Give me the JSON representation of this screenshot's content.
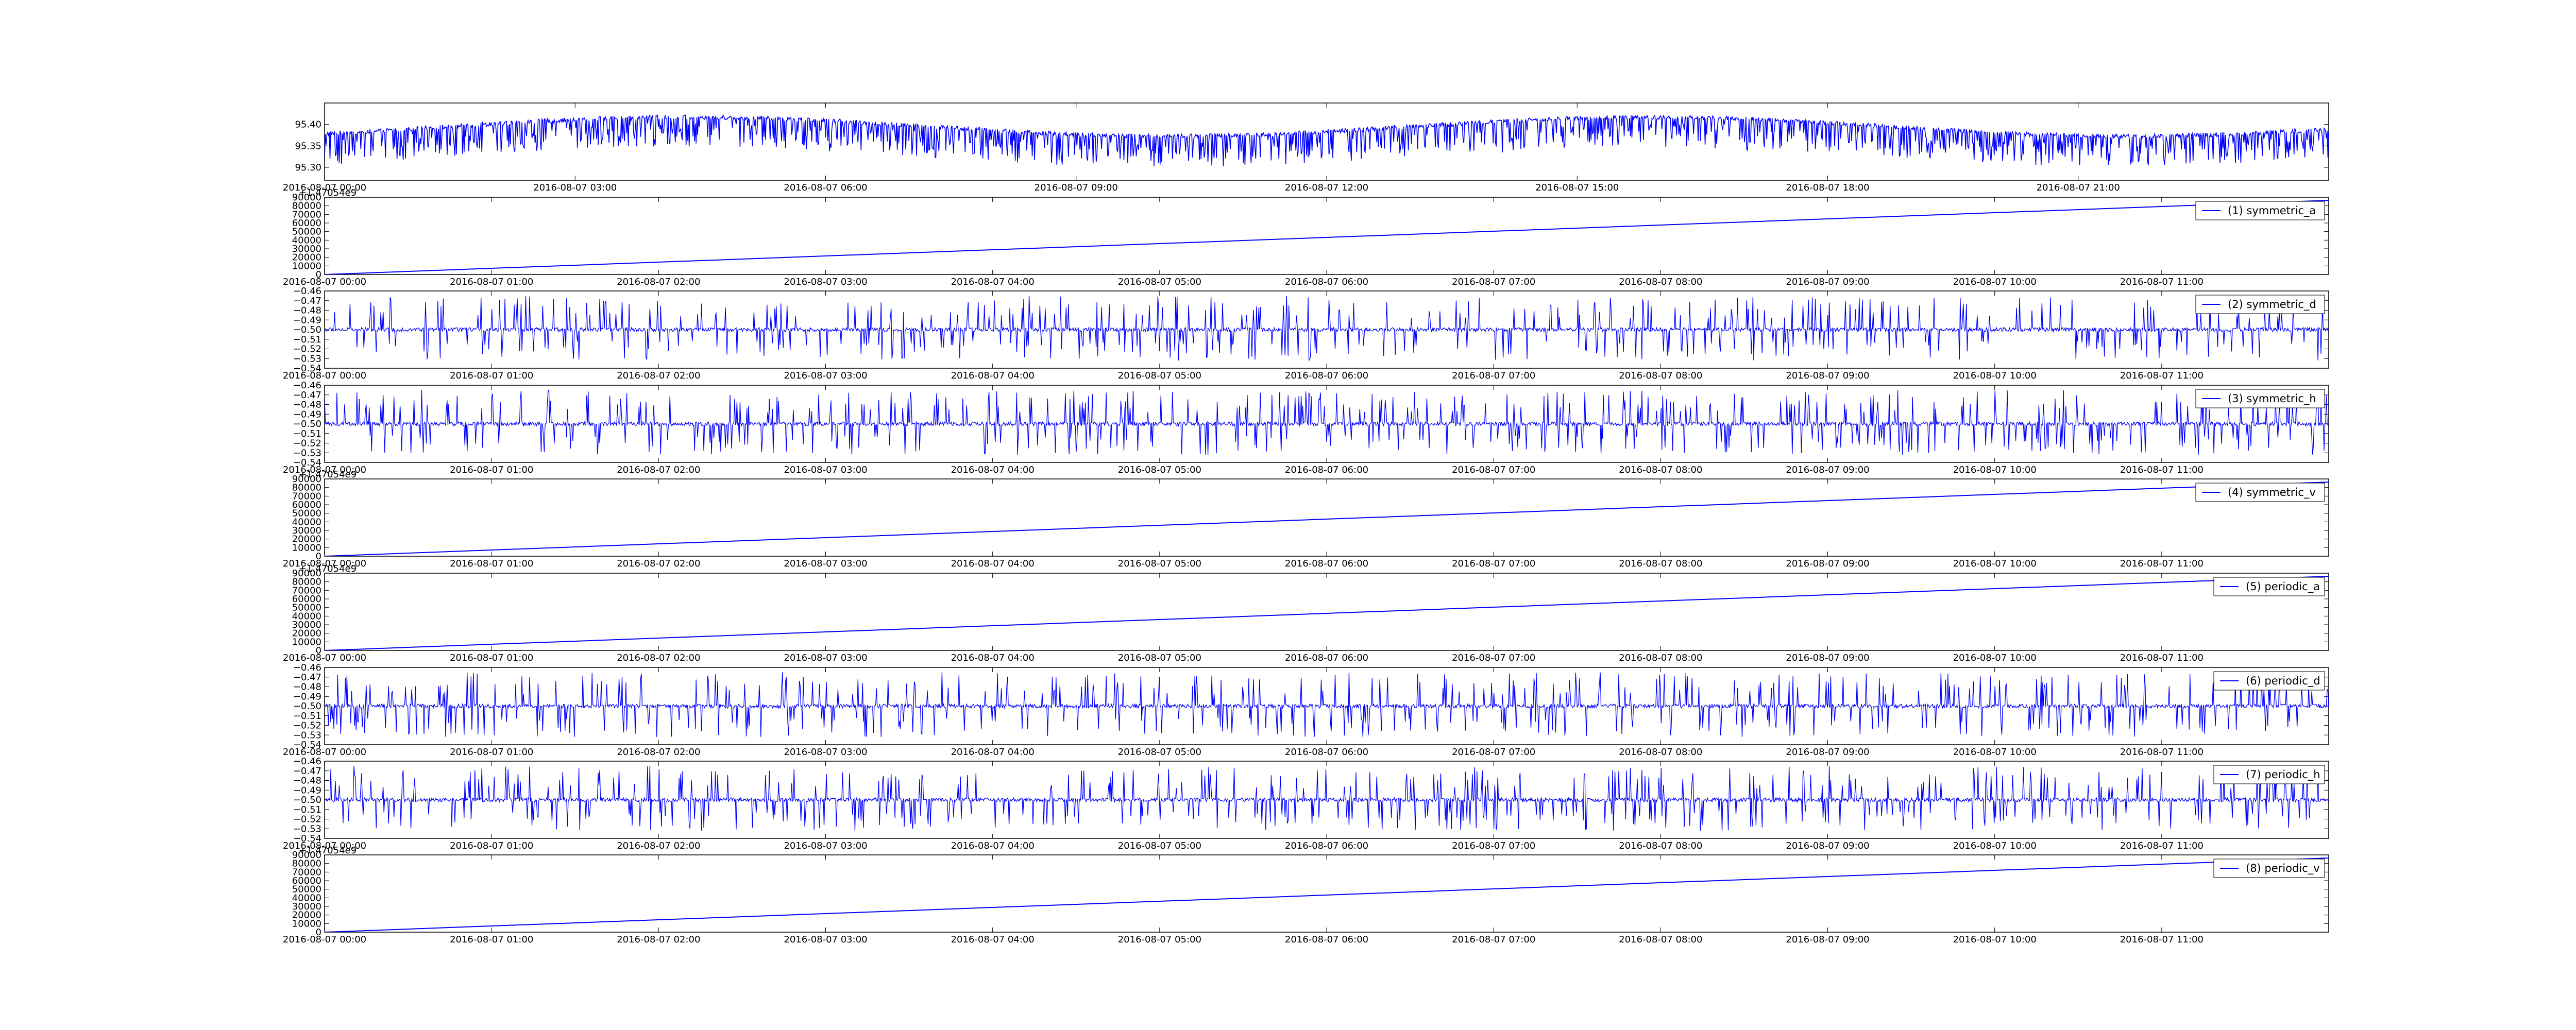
{
  "chart_data": [
    {
      "type": "line",
      "yticks": [
        "95.40",
        "95.35",
        "95.30"
      ],
      "ytick_values": [
        95.4,
        95.35,
        95.3
      ],
      "ylim": [
        95.27,
        95.45
      ],
      "xticks": [
        "2016-08-07 00:00",
        "2016-08-07 03:00",
        "2016-08-07 06:00",
        "2016-08-07 09:00",
        "2016-08-07 12:00",
        "2016-08-07 15:00",
        "2016-08-07 18:00",
        "2016-08-07 21:00"
      ],
      "xlim_hours": [
        0,
        24
      ],
      "offset_label": "",
      "legend": "",
      "series": [
        {
          "style": "noisy baseline drifting ~95.38–95.42 with frequent downward spikes to ~95.29",
          "color": "#0000ff"
        }
      ]
    },
    {
      "type": "line",
      "offset_label": "+1.47054e9",
      "yticks": [
        "90000",
        "80000",
        "70000",
        "60000",
        "50000",
        "40000",
        "30000",
        "20000",
        "10000",
        "0"
      ],
      "ytick_values": [
        90000,
        80000,
        70000,
        60000,
        50000,
        40000,
        30000,
        20000,
        10000,
        0
      ],
      "ylim": [
        0,
        90000
      ],
      "xticks": [
        "2016-08-07 00:00",
        "2016-08-07 01:00",
        "2016-08-07 02:00",
        "2016-08-07 03:00",
        "2016-08-07 04:00",
        "2016-08-07 05:00",
        "2016-08-07 06:00",
        "2016-08-07 07:00",
        "2016-08-07 08:00",
        "2016-08-07 09:00",
        "2016-08-07 10:00",
        "2016-08-07 11:00"
      ],
      "xlim_hours": [
        0,
        12
      ],
      "legend": "(1) symmetric_a",
      "series": [
        {
          "name": "(1) symmetric_a",
          "x": [
            0,
            12
          ],
          "y": [
            0,
            86400
          ],
          "color": "#0000ff"
        }
      ]
    },
    {
      "type": "line",
      "offset_label": "",
      "yticks": [
        "−0.46",
        "−0.47",
        "−0.48",
        "−0.49",
        "−0.50",
        "−0.51",
        "−0.52",
        "−0.53",
        "−0.54"
      ],
      "ytick_values": [
        -0.46,
        -0.47,
        -0.48,
        -0.49,
        -0.5,
        -0.51,
        -0.52,
        -0.53,
        -0.54
      ],
      "ylim": [
        -0.54,
        -0.46
      ],
      "xticks": [
        "2016-08-07 00:00",
        "2016-08-07 01:00",
        "2016-08-07 02:00",
        "2016-08-07 03:00",
        "2016-08-07 04:00",
        "2016-08-07 05:00",
        "2016-08-07 06:00",
        "2016-08-07 07:00",
        "2016-08-07 08:00",
        "2016-08-07 09:00",
        "2016-08-07 10:00",
        "2016-08-07 11:00"
      ],
      "xlim_hours": [
        0,
        12
      ],
      "legend": "(2) symmetric_d",
      "series": [
        {
          "name": "(2) symmetric_d",
          "style": "noise around -0.50 with spikes between -0.53 and -0.465",
          "color": "#0000ff"
        }
      ]
    },
    {
      "type": "line",
      "offset_label": "",
      "yticks": [
        "−0.46",
        "−0.47",
        "−0.48",
        "−0.49",
        "−0.50",
        "−0.51",
        "−0.52",
        "−0.53",
        "−0.54"
      ],
      "ytick_values": [
        -0.46,
        -0.47,
        -0.48,
        -0.49,
        -0.5,
        -0.51,
        -0.52,
        -0.53,
        -0.54
      ],
      "ylim": [
        -0.54,
        -0.46
      ],
      "xticks": [
        "2016-08-07 00:00",
        "2016-08-07 01:00",
        "2016-08-07 02:00",
        "2016-08-07 03:00",
        "2016-08-07 04:00",
        "2016-08-07 05:00",
        "2016-08-07 06:00",
        "2016-08-07 07:00",
        "2016-08-07 08:00",
        "2016-08-07 09:00",
        "2016-08-07 10:00",
        "2016-08-07 11:00"
      ],
      "xlim_hours": [
        0,
        12
      ],
      "legend": "(3) symmetric_h",
      "series": [
        {
          "name": "(3) symmetric_h",
          "style": "noise around -0.50 with spikes between -0.53 and -0.465",
          "color": "#0000ff"
        }
      ]
    },
    {
      "type": "line",
      "offset_label": "+1.47054e9",
      "yticks": [
        "90000",
        "80000",
        "70000",
        "60000",
        "50000",
        "40000",
        "30000",
        "20000",
        "10000",
        "0"
      ],
      "ytick_values": [
        90000,
        80000,
        70000,
        60000,
        50000,
        40000,
        30000,
        20000,
        10000,
        0
      ],
      "ylim": [
        0,
        90000
      ],
      "xticks": [
        "2016-08-07 00:00",
        "2016-08-07 01:00",
        "2016-08-07 02:00",
        "2016-08-07 03:00",
        "2016-08-07 04:00",
        "2016-08-07 05:00",
        "2016-08-07 06:00",
        "2016-08-07 07:00",
        "2016-08-07 08:00",
        "2016-08-07 09:00",
        "2016-08-07 10:00",
        "2016-08-07 11:00"
      ],
      "xlim_hours": [
        0,
        12
      ],
      "legend": "(4) symmetric_v",
      "series": [
        {
          "name": "(4) symmetric_v",
          "x": [
            0,
            12
          ],
          "y": [
            0,
            86400
          ],
          "color": "#0000ff"
        }
      ]
    },
    {
      "type": "line",
      "offset_label": "+1.47054e9",
      "yticks": [
        "90000",
        "80000",
        "70000",
        "60000",
        "50000",
        "40000",
        "30000",
        "20000",
        "10000",
        "0"
      ],
      "ytick_values": [
        90000,
        80000,
        70000,
        60000,
        50000,
        40000,
        30000,
        20000,
        10000,
        0
      ],
      "ylim": [
        0,
        90000
      ],
      "xticks": [
        "2016-08-07 00:00",
        "2016-08-07 01:00",
        "2016-08-07 02:00",
        "2016-08-07 03:00",
        "2016-08-07 04:00",
        "2016-08-07 05:00",
        "2016-08-07 06:00",
        "2016-08-07 07:00",
        "2016-08-07 08:00",
        "2016-08-07 09:00",
        "2016-08-07 10:00",
        "2016-08-07 11:00"
      ],
      "xlim_hours": [
        0,
        12
      ],
      "legend": "(5) periodic_a",
      "series": [
        {
          "name": "(5) periodic_a",
          "x": [
            0,
            12
          ],
          "y": [
            0,
            86400
          ],
          "color": "#0000ff"
        }
      ]
    },
    {
      "type": "line",
      "offset_label": "",
      "yticks": [
        "−0.46",
        "−0.47",
        "−0.48",
        "−0.49",
        "−0.50",
        "−0.51",
        "−0.52",
        "−0.53",
        "−0.54"
      ],
      "ytick_values": [
        -0.46,
        -0.47,
        -0.48,
        -0.49,
        -0.5,
        -0.51,
        -0.52,
        -0.53,
        -0.54
      ],
      "ylim": [
        -0.54,
        -0.46
      ],
      "xticks": [
        "2016-08-07 00:00",
        "2016-08-07 01:00",
        "2016-08-07 02:00",
        "2016-08-07 03:00",
        "2016-08-07 04:00",
        "2016-08-07 05:00",
        "2016-08-07 06:00",
        "2016-08-07 07:00",
        "2016-08-07 08:00",
        "2016-08-07 09:00",
        "2016-08-07 10:00",
        "2016-08-07 11:00"
      ],
      "xlim_hours": [
        0,
        12
      ],
      "legend": "(6) periodic_d",
      "series": [
        {
          "name": "(6) periodic_d",
          "style": "noise around -0.50 with spikes between -0.53 and -0.465",
          "color": "#0000ff"
        }
      ]
    },
    {
      "type": "line",
      "offset_label": "",
      "yticks": [
        "−0.46",
        "−0.47",
        "−0.48",
        "−0.49",
        "−0.50",
        "−0.51",
        "−0.52",
        "−0.53",
        "−0.54"
      ],
      "ytick_values": [
        -0.46,
        -0.47,
        -0.48,
        -0.49,
        -0.5,
        -0.51,
        -0.52,
        -0.53,
        -0.54
      ],
      "ylim": [
        -0.54,
        -0.46
      ],
      "xticks": [
        "2016-08-07 00:00",
        "2016-08-07 01:00",
        "2016-08-07 02:00",
        "2016-08-07 03:00",
        "2016-08-07 04:00",
        "2016-08-07 05:00",
        "2016-08-07 06:00",
        "2016-08-07 07:00",
        "2016-08-07 08:00",
        "2016-08-07 09:00",
        "2016-08-07 10:00",
        "2016-08-07 11:00"
      ],
      "xlim_hours": [
        0,
        12
      ],
      "legend": "(7) periodic_h",
      "series": [
        {
          "name": "(7) periodic_h",
          "style": "noise around -0.50 with spikes between -0.53 and -0.465",
          "color": "#0000ff"
        }
      ]
    },
    {
      "type": "line",
      "offset_label": "+1.47054e9",
      "yticks": [
        "90000",
        "80000",
        "70000",
        "60000",
        "50000",
        "40000",
        "30000",
        "20000",
        "10000",
        "0"
      ],
      "ytick_values": [
        90000,
        80000,
        70000,
        60000,
        50000,
        40000,
        30000,
        20000,
        10000,
        0
      ],
      "ylim": [
        0,
        90000
      ],
      "xticks": [
        "2016-08-07 00:00",
        "2016-08-07 01:00",
        "2016-08-07 02:00",
        "2016-08-07 03:00",
        "2016-08-07 04:00",
        "2016-08-07 05:00",
        "2016-08-07 06:00",
        "2016-08-07 07:00",
        "2016-08-07 08:00",
        "2016-08-07 09:00",
        "2016-08-07 10:00",
        "2016-08-07 11:00"
      ],
      "xlim_hours": [
        0,
        12
      ],
      "legend": "(8) periodic_v",
      "series": [
        {
          "name": "(8) periodic_v",
          "x": [
            0,
            12
          ],
          "y": [
            0,
            86400
          ],
          "color": "#0000ff"
        }
      ]
    }
  ]
}
